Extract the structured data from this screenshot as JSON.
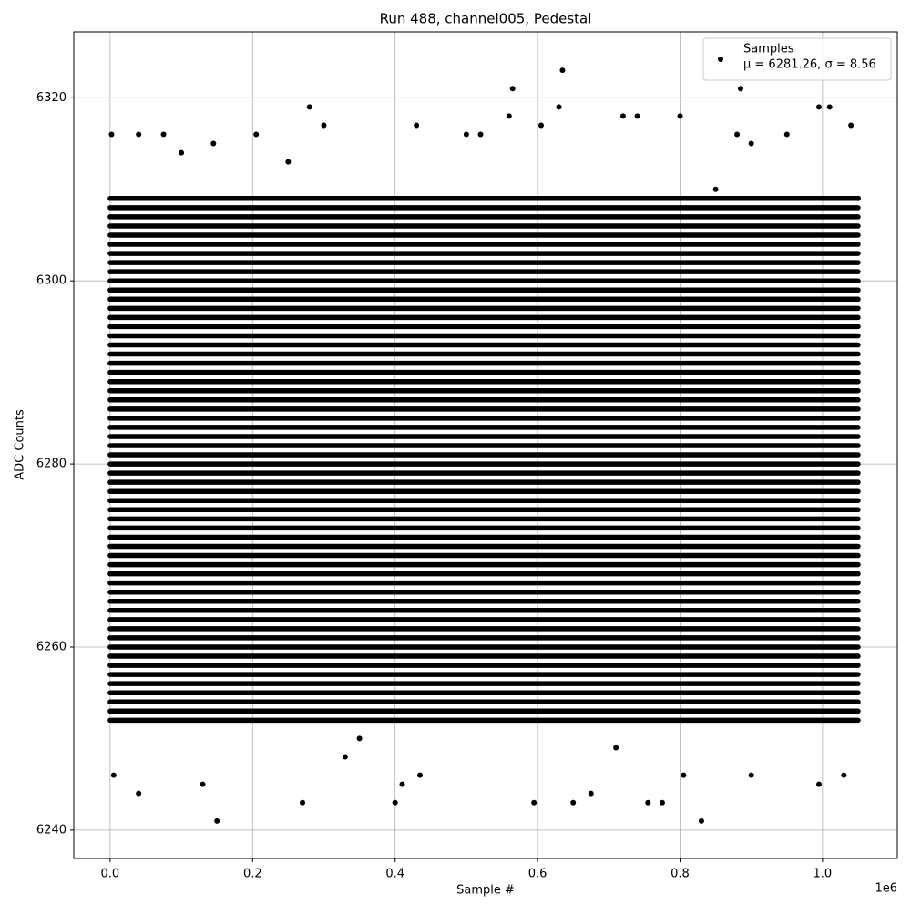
{
  "chart_data": {
    "type": "scatter",
    "title": "Run 488, channel005, Pedestal",
    "x_label": "Sample #",
    "y_label": "ADC Counts",
    "x_offset_label": "1e6",
    "xlim": [
      -51000,
      1105000
    ],
    "ylim": [
      6236.9,
      6327.2
    ],
    "xticks": [
      {
        "value": 0,
        "label": "0.0"
      },
      {
        "value": 200000,
        "label": "0.2"
      },
      {
        "value": 400000,
        "label": "0.4"
      },
      {
        "value": 600000,
        "label": "0.6"
      },
      {
        "value": 800000,
        "label": "0.8"
      },
      {
        "value": 1000000,
        "label": "1.0"
      }
    ],
    "yticks": [
      6240,
      6260,
      6280,
      6300,
      6320
    ],
    "grid": true,
    "legend": "upper right",
    "legend_note": "μ = 6281.26, σ = 8.56",
    "series": [
      {
        "name": "Samples",
        "color": "#000000",
        "x": [
          2000,
          5000,
          40000,
          40000,
          75000,
          130000,
          145000,
          150000,
          205000,
          270000,
          280000,
          300000,
          400000,
          410000,
          430000,
          435000,
          560000,
          565000,
          595000,
          605000,
          630000,
          635000,
          650000,
          675000,
          720000,
          740000,
          755000,
          775000,
          800000,
          805000,
          830000,
          880000,
          885000,
          900000,
          995000,
          995000,
          1010000,
          1040000,
          1030000,
          100000,
          500000,
          520000,
          330000,
          950000,
          350000,
          710000,
          900000,
          1050000,
          850000,
          250000
        ],
        "values": [
          6316,
          6246,
          6244,
          6316,
          6316,
          6245,
          6315,
          6241,
          6316,
          6243,
          6319,
          6317,
          6243,
          6245,
          6317,
          6246,
          6318,
          6321,
          6243,
          6317,
          6319,
          6323,
          6243,
          6244,
          6318,
          6318,
          6243,
          6243,
          6318,
          6246,
          6241,
          6316,
          6321,
          6246,
          6245,
          6319,
          6319,
          6317,
          6246,
          6314,
          6316,
          6316,
          6248,
          6316,
          6250,
          6249,
          6315,
          6309,
          6310,
          6313
        ]
      }
    ],
    "bands": {
      "band_x": [
        0,
        1050000
      ],
      "values": [
        6252,
        6253,
        6254,
        6255,
        6256,
        6257,
        6258,
        6259,
        6260,
        6261,
        6262,
        6263,
        6264,
        6265,
        6266,
        6267,
        6268,
        6269,
        6270,
        6271,
        6272,
        6273,
        6274,
        6275,
        6276,
        6277,
        6278,
        6279,
        6280,
        6281,
        6282,
        6283,
        6284,
        6285,
        6286,
        6287,
        6288,
        6289,
        6290,
        6291,
        6292,
        6293,
        6294,
        6295,
        6296,
        6297,
        6298,
        6299,
        6300,
        6301,
        6302,
        6303,
        6304,
        6305,
        6306,
        6307,
        6308,
        6309
      ]
    }
  }
}
